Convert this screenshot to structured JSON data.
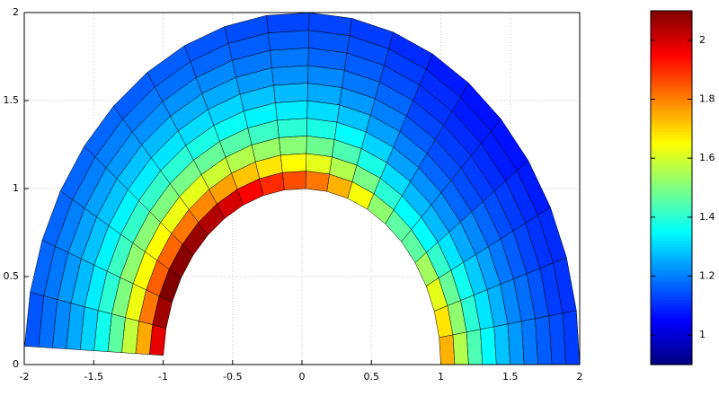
{
  "chart_data": {
    "type": "polar_mesh",
    "colormap": "jet",
    "grid": true,
    "xlim": [
      -2,
      2
    ],
    "ylim": [
      0,
      2
    ],
    "xticks": [
      -2,
      -1.5,
      -1,
      -0.5,
      0,
      0.5,
      1,
      1.5,
      2
    ],
    "yticks": [
      0,
      0.5,
      1,
      1.5,
      2
    ],
    "clim": [
      0.9,
      2.1
    ],
    "cticks": [
      1,
      1.2,
      1.4,
      1.6,
      1.8,
      2
    ],
    "r_edges": [
      1,
      1.1,
      1.2,
      1.3,
      1.4,
      1.5,
      1.6,
      1.7,
      1.8,
      1.9,
      2
    ],
    "theta_edges": [
      0,
      8.85,
      17.7,
      26.55,
      35.4,
      44.25,
      53.1,
      61.95,
      70.8,
      79.65,
      88.5,
      97.35,
      106.2,
      115.05,
      123.9,
      132.75,
      141.6,
      150.45,
      159.3,
      168.15,
      177
    ],
    "values": [
      [
        1.74,
        1.56,
        1.44,
        1.35,
        1.28,
        1.23,
        1.19,
        1.16,
        1.14,
        1.12
      ],
      [
        1.68,
        1.52,
        1.4,
        1.32,
        1.26,
        1.21,
        1.18,
        1.15,
        1.12,
        1.11
      ],
      [
        1.62,
        1.47,
        1.37,
        1.29,
        1.24,
        1.19,
        1.16,
        1.13,
        1.11,
        1.1
      ],
      [
        1.54,
        1.41,
        1.32,
        1.25,
        1.21,
        1.17,
        1.14,
        1.12,
        1.1,
        1.08
      ],
      [
        1.46,
        1.35,
        1.27,
        1.22,
        1.17,
        1.14,
        1.12,
        1.1,
        1.08,
        1.07
      ],
      [
        1.46,
        1.35,
        1.27,
        1.22,
        1.17,
        1.14,
        1.12,
        1.1,
        1.08,
        1.07
      ],
      [
        1.52,
        1.4,
        1.31,
        1.24,
        1.2,
        1.16,
        1.13,
        1.11,
        1.1,
        1.08
      ],
      [
        1.64,
        1.49,
        1.38,
        1.3,
        1.24,
        1.2,
        1.17,
        1.14,
        1.12,
        1.1
      ],
      [
        1.74,
        1.56,
        1.44,
        1.35,
        1.28,
        1.23,
        1.19,
        1.16,
        1.14,
        1.12
      ],
      [
        1.81,
        1.62,
        1.48,
        1.38,
        1.31,
        1.25,
        1.21,
        1.17,
        1.15,
        1.13
      ],
      [
        1.86,
        1.65,
        1.51,
        1.4,
        1.33,
        1.27,
        1.22,
        1.19,
        1.16,
        1.13
      ],
      [
        1.9,
        1.68,
        1.53,
        1.42,
        1.34,
        1.28,
        1.23,
        1.19,
        1.16,
        1.14
      ],
      [
        1.95,
        1.72,
        1.56,
        1.45,
        1.36,
        1.3,
        1.25,
        1.21,
        1.17,
        1.15
      ],
      [
        2.0,
        1.76,
        1.59,
        1.47,
        1.38,
        1.31,
        1.26,
        1.22,
        1.18,
        1.16
      ],
      [
        2.04,
        1.79,
        1.62,
        1.49,
        1.4,
        1.32,
        1.27,
        1.22,
        1.19,
        1.16
      ],
      [
        2.07,
        1.81,
        1.63,
        1.5,
        1.41,
        1.33,
        1.28,
        1.23,
        1.2,
        1.17
      ],
      [
        2.09,
        1.83,
        1.65,
        1.51,
        1.41,
        1.34,
        1.28,
        1.24,
        1.2,
        1.17
      ],
      [
        2.1,
        1.84,
        1.65,
        1.52,
        1.42,
        1.34,
        1.28,
        1.24,
        1.2,
        1.17
      ],
      [
        2.06,
        1.81,
        1.63,
        1.5,
        1.4,
        1.33,
        1.27,
        1.23,
        1.19,
        1.17
      ],
      [
        1.98,
        1.75,
        1.58,
        1.46,
        1.37,
        1.3,
        1.25,
        1.21,
        1.18,
        1.15
      ]
    ]
  }
}
